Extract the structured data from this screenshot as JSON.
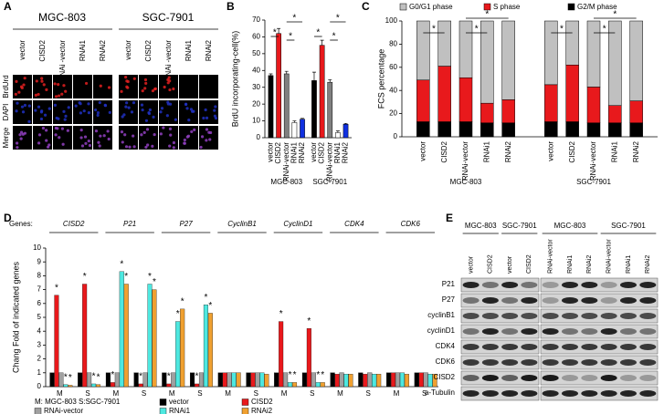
{
  "panel_labels": [
    "A",
    "B",
    "C",
    "D",
    "E"
  ],
  "panel_a": {
    "cell_lines": [
      "MGC-803",
      "SGC-7901"
    ],
    "columns": [
      "vector",
      "CISD2",
      "RNAi -vector",
      "RNAi1",
      "RNAi2"
    ],
    "rows": [
      "BrdUrd",
      "DAPI",
      "Merge"
    ]
  },
  "chart_data": [
    {
      "type": "bar",
      "ylabel": "BrdU incorporating-cell(%)",
      "groups": [
        "MGC-803",
        "SGC-7901"
      ],
      "series": [
        {
          "name": "vector",
          "color": "#000000",
          "values": [
            37,
            34
          ],
          "errors": [
            1,
            5
          ]
        },
        {
          "name": "CISD2",
          "color": "#e8191c",
          "values": [
            62,
            55
          ],
          "errors": [
            3,
            3
          ]
        },
        {
          "name": "RNAi-vector",
          "color": "#808080",
          "values": [
            38,
            33
          ],
          "errors": [
            1.5,
            1.5
          ]
        },
        {
          "name": "RNAi1",
          "color": "#ffffff",
          "values": [
            9,
            3
          ],
          "errors": [
            1,
            1
          ]
        },
        {
          "name": "RNAi2",
          "color": "#1030e0",
          "values": [
            11,
            8
          ],
          "errors": [
            0.5,
            0.5
          ]
        }
      ],
      "ylim": [
        0,
        70
      ],
      "yticks": [
        0,
        10,
        20,
        30,
        40,
        50,
        60,
        70
      ],
      "significance_label": "*"
    },
    {
      "type": "stacked_bar",
      "ylabel": "FCS percentage",
      "groups": [
        "MGC-803",
        "SGC-7901"
      ],
      "categories": [
        "vector",
        "CISD2",
        "RNAi-vector",
        "RNAi1",
        "RNAi2",
        "vector",
        "CISD2",
        "RNAi-vector",
        "RNAi1",
        "RNAi2"
      ],
      "series": [
        {
          "name": "G0/G1 phase",
          "color": "#c0c0c0",
          "values": [
            51,
            39,
            49,
            71,
            68,
            55,
            38,
            57,
            73,
            69
          ]
        },
        {
          "name": "S phase",
          "color": "#e8191c",
          "values": [
            36,
            48,
            38,
            17,
            20,
            32,
            49,
            31,
            15,
            19
          ]
        },
        {
          "name": "G2/M phase",
          "color": "#000000",
          "values": [
            13,
            13,
            13,
            12,
            12,
            13,
            13,
            12,
            12,
            12
          ]
        }
      ],
      "ylim": [
        0,
        100
      ],
      "yticks": [
        0,
        20,
        40,
        60,
        80,
        100
      ],
      "significance_label": "*"
    },
    {
      "type": "grouped_bar",
      "ylabel": "Chang Fold of indicated genes",
      "genes_label": "Genes:",
      "genes": [
        "CISD2",
        "P21",
        "P27",
        "CyclinB1",
        "CyclinD1",
        "CDK4",
        "CDK6"
      ],
      "categories": [
        "M",
        "S",
        "M",
        "S",
        "M",
        "S",
        "M",
        "S",
        "M",
        "S",
        "M",
        "S",
        "M",
        "S"
      ],
      "note": "M: MGC-803  S:SGC-7901",
      "series": [
        {
          "name": "vector",
          "color": "#000000",
          "values": [
            1,
            1,
            1,
            1,
            1,
            1,
            1,
            1,
            1,
            1,
            1,
            1,
            1,
            1
          ]
        },
        {
          "name": "CISD2",
          "color": "#e8191c",
          "values": [
            6.6,
            7.4,
            0.3,
            0.2,
            0.2,
            0.2,
            1.0,
            1.0,
            4.7,
            4.2,
            0.9,
            0.9,
            1.0,
            1.0
          ]
        },
        {
          "name": "RNAi-vector",
          "color": "#a0a0a0",
          "values": [
            1,
            1,
            1,
            1,
            1,
            1,
            1,
            1,
            1,
            1,
            1,
            1,
            1,
            1
          ]
        },
        {
          "name": "RNAi1",
          "color": "#4de8e0",
          "values": [
            0.15,
            0.2,
            8.3,
            7.4,
            4.7,
            5.9,
            1.0,
            1.0,
            0.3,
            0.3,
            0.9,
            0.9,
            1.0,
            0.9
          ]
        },
        {
          "name": "RNAi2",
          "color": "#f0a030",
          "values": [
            0.1,
            0.15,
            7.4,
            7.0,
            5.6,
            5.3,
            1.0,
            0.9,
            0.3,
            0.3,
            0.9,
            0.9,
            0.9,
            0.9
          ]
        }
      ],
      "ylim": [
        0,
        10
      ],
      "yticks": [
        0,
        1,
        2,
        3,
        4,
        5,
        6,
        7,
        8,
        9,
        10
      ],
      "significance_label": "*"
    }
  ],
  "panel_e": {
    "cell_lines": [
      "MGC-803",
      "SGC-7901",
      "MGC-803",
      "SGC-7901"
    ],
    "lanes": [
      "vector",
      "CISD2",
      "vector",
      "CISD2",
      "RNAi-vector",
      "RNAi1",
      "RNAi2",
      "RNAi-vector",
      "RNAi1",
      "RNAi2"
    ],
    "proteins": [
      "P21",
      "P27",
      "cyclinB1",
      "cyclinD1",
      "CDK4",
      "CDK6",
      "CISD2",
      "a-Tubulin"
    ]
  }
}
